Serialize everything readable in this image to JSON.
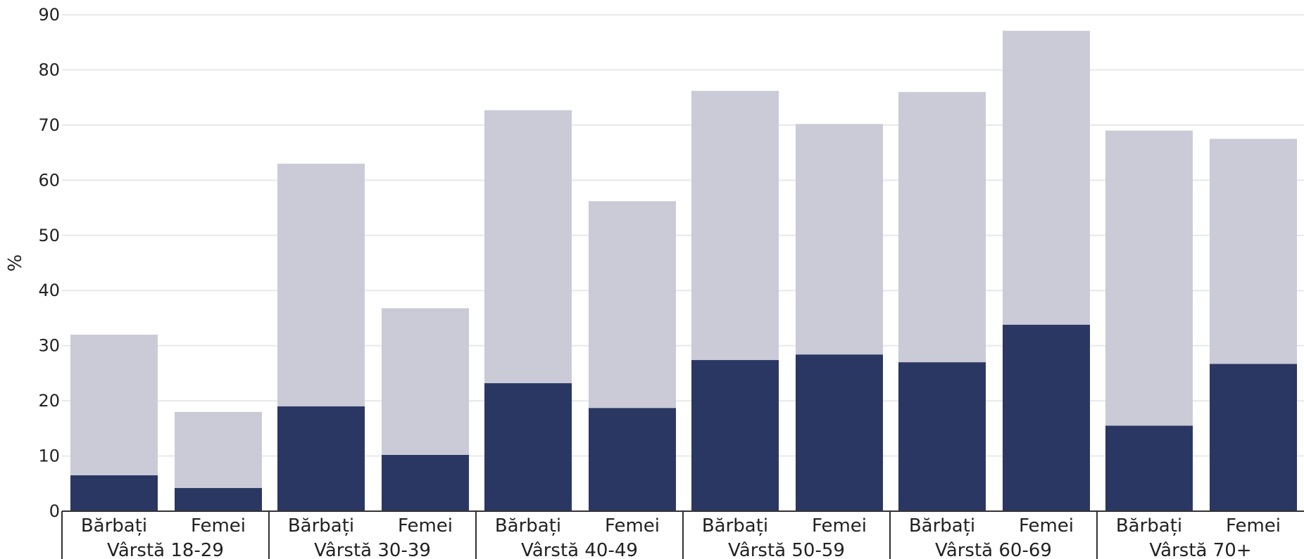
{
  "chart_data": {
    "type": "bar",
    "stacked": true,
    "ylabel": "%",
    "ylim": [
      0,
      90
    ],
    "yticks": [
      0,
      10,
      20,
      30,
      40,
      50,
      60,
      70,
      80,
      90
    ],
    "grid": true,
    "groups": [
      {
        "label": "Vârstă 18-29",
        "bars": [
          {
            "label": "Bărbați",
            "dark": 6.5,
            "total": 32
          },
          {
            "label": "Femei",
            "dark": 4.2,
            "total": 18
          }
        ]
      },
      {
        "label": "Vârstă 30-39",
        "bars": [
          {
            "label": "Bărbați",
            "dark": 19,
            "total": 63
          },
          {
            "label": "Femei",
            "dark": 10.2,
            "total": 36.8
          }
        ]
      },
      {
        "label": "Vârstă 40-49",
        "bars": [
          {
            "label": "Bărbați",
            "dark": 23.2,
            "total": 72.7
          },
          {
            "label": "Femei",
            "dark": 18.7,
            "total": 56.2
          }
        ]
      },
      {
        "label": "Vârstă 50-59",
        "bars": [
          {
            "label": "Bărbați",
            "dark": 27.4,
            "total": 76.2
          },
          {
            "label": "Femei",
            "dark": 28.4,
            "total": 70.2
          }
        ]
      },
      {
        "label": "Vârstă 60-69",
        "bars": [
          {
            "label": "Bărbați",
            "dark": 27,
            "total": 76
          },
          {
            "label": "Femei",
            "dark": 33.8,
            "total": 87.1
          }
        ]
      },
      {
        "label": "Vârstă 70+",
        "bars": [
          {
            "label": "Bărbați",
            "dark": 15.5,
            "total": 69
          },
          {
            "label": "Femei",
            "dark": 26.7,
            "total": 67.5
          }
        ]
      }
    ],
    "colors": {
      "dark": "#2b3763",
      "light": "#cacbd7",
      "grid": "#e8e8e8",
      "axis": "#333333"
    }
  }
}
